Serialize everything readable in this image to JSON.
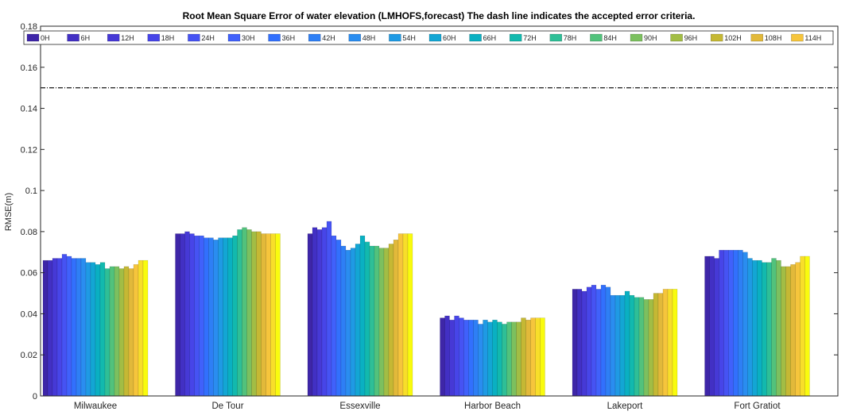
{
  "chart_data": {
    "type": "bar",
    "title": "Root Mean Square Error of water elevation  (LMHOFS,forecast)   The dash line indicates the accepted error criteria.",
    "xlabel": "",
    "ylabel": "RMSE(m)",
    "ylim": [
      0,
      0.18
    ],
    "yticks": [
      "0",
      "0.02",
      "0.04",
      "0.06",
      "0.08",
      "0.1",
      "0.12",
      "0.14",
      "0.16",
      "0.18"
    ],
    "criteria_line": 0.15,
    "grid": false,
    "legend_position": "top",
    "categories": [
      "Milwaukee",
      "De Tour",
      "Essexville",
      "Harbor Beach",
      "Lakeport",
      "Fort Gratiot"
    ],
    "series": [
      {
        "name": "0H",
        "color": "#3e26a8",
        "values": [
          0.066,
          0.079,
          0.079,
          0.038,
          0.052,
          0.068
        ]
      },
      {
        "name": "6H",
        "color": "#4230c4",
        "values": [
          0.066,
          0.079,
          0.082,
          0.039,
          0.052,
          0.068
        ]
      },
      {
        "name": "12H",
        "color": "#4639d6",
        "values": [
          0.067,
          0.08,
          0.081,
          0.037,
          0.051,
          0.067
        ]
      },
      {
        "name": "18H",
        "color": "#4745e8",
        "values": [
          0.067,
          0.079,
          0.082,
          0.039,
          0.053,
          0.071
        ]
      },
      {
        "name": "24H",
        "color": "#4653f3",
        "values": [
          0.069,
          0.078,
          0.085,
          0.038,
          0.054,
          0.071
        ]
      },
      {
        "name": "30H",
        "color": "#4061fb",
        "values": [
          0.068,
          0.078,
          0.078,
          0.037,
          0.052,
          0.071
        ]
      },
      {
        "name": "36H",
        "color": "#3270fd",
        "values": [
          0.067,
          0.077,
          0.076,
          0.037,
          0.054,
          0.071
        ]
      },
      {
        "name": "42H",
        "color": "#2e7ff5",
        "values": [
          0.067,
          0.077,
          0.073,
          0.037,
          0.053,
          0.071
        ]
      },
      {
        "name": "48H",
        "color": "#2a8df0",
        "values": [
          0.067,
          0.076,
          0.071,
          0.035,
          0.049,
          0.07
        ]
      },
      {
        "name": "54H",
        "color": "#1f9ae4",
        "values": [
          0.065,
          0.077,
          0.072,
          0.037,
          0.049,
          0.067
        ]
      },
      {
        "name": "60H",
        "color": "#13a6d4",
        "values": [
          0.065,
          0.077,
          0.074,
          0.036,
          0.049,
          0.066
        ]
      },
      {
        "name": "66H",
        "color": "#0ab0c2",
        "values": [
          0.064,
          0.077,
          0.078,
          0.037,
          0.051,
          0.066
        ]
      },
      {
        "name": "72H",
        "color": "#12b9ae",
        "values": [
          0.065,
          0.078,
          0.075,
          0.036,
          0.049,
          0.065
        ]
      },
      {
        "name": "78H",
        "color": "#2ebf97",
        "values": [
          0.062,
          0.081,
          0.073,
          0.035,
          0.048,
          0.065
        ]
      },
      {
        "name": "84H",
        "color": "#52c27c",
        "values": [
          0.063,
          0.082,
          0.073,
          0.036,
          0.048,
          0.067
        ]
      },
      {
        "name": "90H",
        "color": "#7cc05f",
        "values": [
          0.063,
          0.081,
          0.072,
          0.036,
          0.047,
          0.066
        ]
      },
      {
        "name": "96H",
        "color": "#a2bd45",
        "values": [
          0.062,
          0.08,
          0.072,
          0.036,
          0.047,
          0.063
        ]
      },
      {
        "name": "102H",
        "color": "#c5b834",
        "values": [
          0.063,
          0.08,
          0.074,
          0.038,
          0.05,
          0.063
        ]
      },
      {
        "name": "108H",
        "color": "#e2b93a",
        "values": [
          0.062,
          0.079,
          0.076,
          0.037,
          0.05,
          0.064
        ]
      },
      {
        "name": "114H",
        "color": "#f6c53c",
        "values": [
          0.064,
          0.079,
          0.079,
          0.038,
          0.052,
          0.065
        ]
      },
      {
        "name": "",
        "color": "#f8de2a",
        "values": [
          0.066,
          0.079,
          0.079,
          0.038,
          0.052,
          0.068
        ]
      },
      {
        "name": "",
        "color": "#f9fb0e",
        "values": [
          0.066,
          0.079,
          0.079,
          0.038,
          0.052,
          0.068
        ]
      }
    ]
  }
}
